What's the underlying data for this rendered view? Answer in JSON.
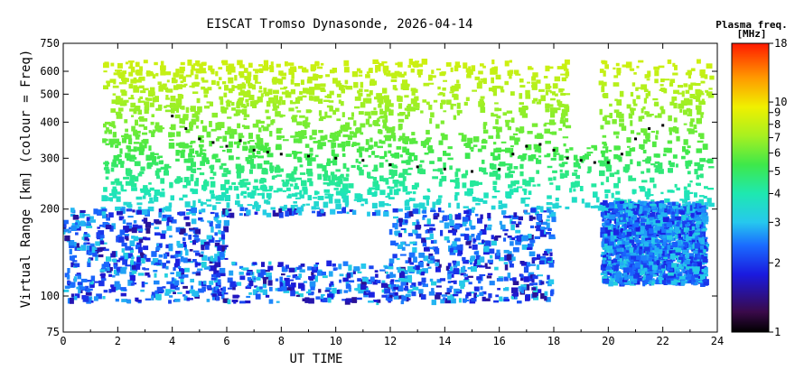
{
  "chart_data": {
    "type": "heatmap",
    "title": "EISCAT Tromso Dynasonde, 2026-04-14",
    "xlabel": "UT TIME",
    "ylabel": "Virtual Range [km] (colour = Freq)",
    "xlim": [
      0,
      24
    ],
    "x_ticks": [
      0,
      2,
      4,
      6,
      8,
      10,
      12,
      14,
      16,
      18,
      20,
      22,
      24
    ],
    "ylim": [
      75,
      750
    ],
    "y_scale": "log",
    "y_ticks": [
      75,
      100,
      200,
      300,
      400,
      500,
      600,
      750
    ],
    "colorbar": {
      "title_line1": "Plasma freq.",
      "title_line2": "[MHz]",
      "range": [
        1,
        18
      ],
      "scale": "log",
      "ticks": [
        1,
        2,
        3,
        4,
        5,
        6,
        7,
        8,
        9,
        10,
        18
      ]
    },
    "series": [
      {
        "name": "Peak height trace (black dots)",
        "x": [
          4.0,
          4.5,
          5.0,
          5.5,
          6.0,
          6.5,
          7.0,
          7.5,
          8.0,
          9.0,
          10.0,
          11.0,
          12.0,
          13.0,
          14.0,
          15.0,
          16.0,
          16.5,
          17.0,
          17.5,
          18.0,
          18.5,
          19.0,
          19.5,
          20.0,
          20.5,
          21.0,
          21.5,
          22.0
        ],
        "y": [
          420,
          380,
          350,
          340,
          330,
          345,
          320,
          315,
          310,
          305,
          300,
          295,
          285,
          280,
          275,
          270,
          275,
          310,
          330,
          335,
          320,
          300,
          295,
          290,
          290,
          310,
          350,
          380,
          390
        ]
      }
    ],
    "echo_regions": [
      {
        "name": "F-region echoes",
        "x": [
          1.5,
          23.8
        ],
        "y": [
          200,
          650
        ],
        "freq_mhz": [
          3,
          7
        ]
      },
      {
        "name": "E-region echoes",
        "x": [
          0,
          18
        ],
        "y": [
          95,
          200
        ],
        "freq_mhz": [
          1.5,
          3
        ]
      },
      {
        "name": "Late sporadic layer",
        "x": [
          19.8,
          23.6
        ],
        "y": [
          110,
          210
        ],
        "freq_mhz": [
          1.8,
          3
        ]
      }
    ]
  }
}
